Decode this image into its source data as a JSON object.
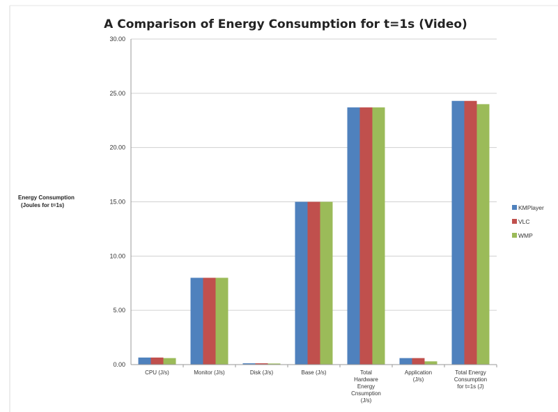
{
  "chart_data": {
    "type": "bar",
    "title": "A Comparison of Energy Consumption for t=1s (Video)",
    "ylabel": [
      "Energy Consumption",
      "(Joules for t=1s)"
    ],
    "ylim": [
      0,
      30
    ],
    "yticks": [
      "0.00",
      "5.00",
      "10.00",
      "15.00",
      "20.00",
      "25.00",
      "30.00"
    ],
    "grid": true,
    "legend": "right",
    "categories": [
      [
        "CPU (J/s)"
      ],
      [
        "Monitor (J/s)"
      ],
      [
        "Disk (J/s)"
      ],
      [
        "Base (J/s)"
      ],
      [
        "Total",
        "Hardware",
        "Energy",
        "Cnsumption",
        "(J/s)"
      ],
      [
        "Application",
        "(J/s)"
      ],
      [
        "Total Energy",
        "Consumption",
        "for t=1s (J)"
      ]
    ],
    "series": [
      {
        "name": "KMPlayer",
        "color": "#4f81bd",
        "values": [
          0.65,
          8.0,
          0.12,
          15.0,
          23.7,
          0.6,
          24.3
        ]
      },
      {
        "name": "VLC",
        "color": "#c0504d",
        "values": [
          0.65,
          8.0,
          0.12,
          15.0,
          23.7,
          0.6,
          24.3
        ]
      },
      {
        "name": "WMP",
        "color": "#9bbb59",
        "values": [
          0.6,
          8.0,
          0.1,
          15.0,
          23.7,
          0.3,
          24.0
        ]
      }
    ]
  }
}
